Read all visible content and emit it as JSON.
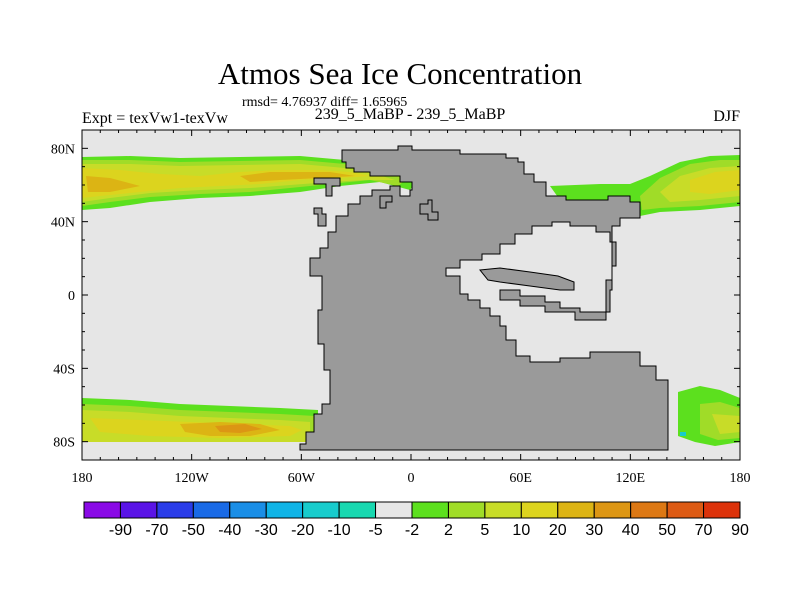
{
  "chart_data": {
    "type": "heatmap",
    "title": "Atmos Sea Ice Concentration",
    "subtitle": "rmsd= 4.76937 diff= 1.65965",
    "left_label": "Expt = texVw1-texVw",
    "center_label": "239_5_MaBP - 239_5_MaBP",
    "right_label": "DJF",
    "xlim": [
      -180,
      180
    ],
    "ylim": [
      -90,
      90
    ],
    "x_ticks": [
      {
        "value": -180,
        "label": "180"
      },
      {
        "value": -120,
        "label": "120W"
      },
      {
        "value": -60,
        "label": "60W"
      },
      {
        "value": 0,
        "label": "0"
      },
      {
        "value": 60,
        "label": "60E"
      },
      {
        "value": 120,
        "label": "120E"
      },
      {
        "value": 180,
        "label": "180"
      }
    ],
    "y_ticks": [
      {
        "value": 80,
        "label": "80N"
      },
      {
        "value": 40,
        "label": "40N"
      },
      {
        "value": 0,
        "label": "0"
      },
      {
        "value": -40,
        "label": "40S"
      },
      {
        "value": -80,
        "label": "80S"
      }
    ],
    "colorbar": {
      "levels": [
        "-90",
        "-70",
        "-50",
        "-40",
        "-30",
        "-20",
        "-10",
        "-5",
        "-2",
        "2",
        "5",
        "10",
        "20",
        "30",
        "40",
        "50",
        "70",
        "90"
      ],
      "colors": [
        "#8a0ae6",
        "#5a14e6",
        "#2a3ce8",
        "#1a6ae6",
        "#1a8ee6",
        "#10b4e6",
        "#18cccc",
        "#18d8b0",
        "#e6e6e6",
        "#5ce01e",
        "#a0dc28",
        "#c8dc28",
        "#dcd41e",
        "#dcb414",
        "#dc9614",
        "#dc7814",
        "#dc5a14",
        "#dc320a"
      ]
    },
    "colors": {
      "land": "#9a9a9a",
      "ocean_background": "#e6e6e6"
    }
  }
}
